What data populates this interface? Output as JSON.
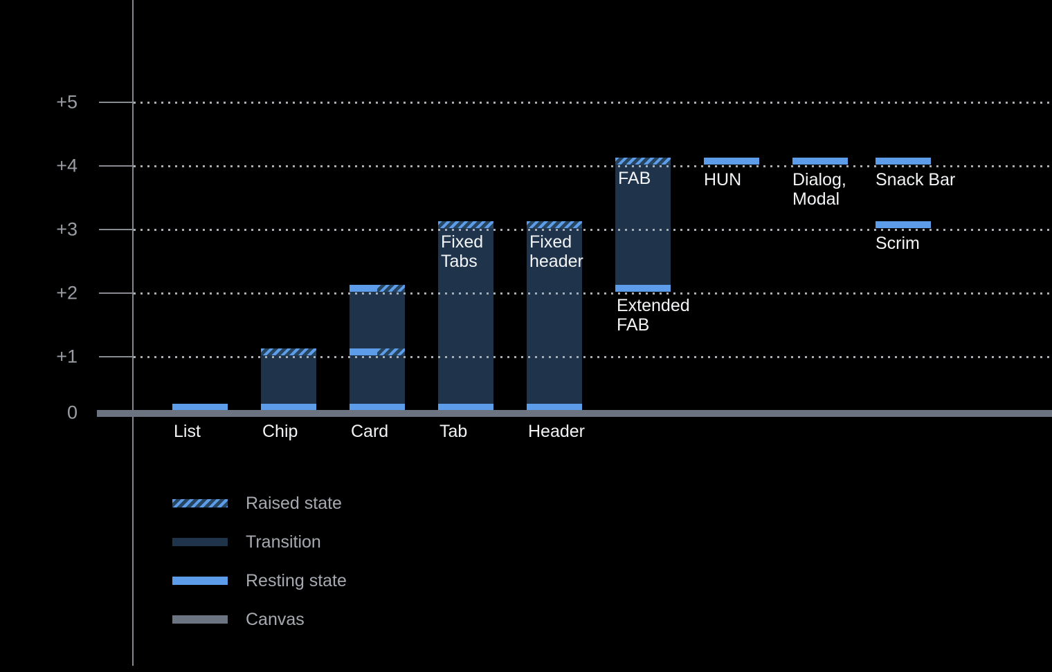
{
  "chart_data": {
    "type": "bar",
    "title": "",
    "xlabel": "",
    "ylabel": "",
    "ylim": [
      0,
      5
    ],
    "grid": "dotted horizontal gridlines at +1..+5",
    "legend_position": "bottom-left",
    "y_ticks": [
      {
        "label": "+5",
        "value": 5
      },
      {
        "label": "+4",
        "value": 4
      },
      {
        "label": "+3",
        "value": 3
      },
      {
        "label": "+2",
        "value": 2
      },
      {
        "label": "+1",
        "value": 1
      },
      {
        "label": "0",
        "value": 0
      }
    ],
    "gridline_values": [
      1,
      2,
      3,
      4,
      5
    ],
    "columns": [
      {
        "name": "list",
        "axis_label": "List",
        "segments": [
          {
            "kind": "resting",
            "at": 0
          }
        ]
      },
      {
        "name": "chip",
        "axis_label": "Chip",
        "segments": [
          {
            "kind": "transition",
            "from": 0,
            "to": 1
          },
          {
            "kind": "raised",
            "at": 1
          },
          {
            "kind": "resting",
            "at": 0
          }
        ]
      },
      {
        "name": "card",
        "axis_label": "Card",
        "segments": [
          {
            "kind": "transition",
            "from": 0,
            "to": 2
          },
          {
            "kind": "raised-resting",
            "at": 2
          },
          {
            "kind": "raised-resting",
            "at": 1
          },
          {
            "kind": "resting",
            "at": 0
          }
        ]
      },
      {
        "name": "tab",
        "axis_label": "Tab",
        "inner_label": [
          "Fixed",
          "Tabs"
        ],
        "segments": [
          {
            "kind": "transition",
            "from": 0,
            "to": 3
          },
          {
            "kind": "raised",
            "at": 3
          },
          {
            "kind": "resting",
            "at": 0
          }
        ]
      },
      {
        "name": "header",
        "axis_label": "Header",
        "inner_label": [
          "Fixed",
          "header"
        ],
        "segments": [
          {
            "kind": "transition",
            "from": 0,
            "to": 3
          },
          {
            "kind": "raised",
            "at": 3
          },
          {
            "kind": "resting",
            "at": 0
          }
        ]
      },
      {
        "name": "fab",
        "inner_label": [
          "FAB"
        ],
        "below_label": [
          "Extended",
          "FAB"
        ],
        "segments": [
          {
            "kind": "transition",
            "from": 2,
            "to": 4
          },
          {
            "kind": "raised",
            "at": 4
          },
          {
            "kind": "resting-float",
            "at": 2
          }
        ]
      },
      {
        "name": "hun",
        "segments": [
          {
            "kind": "resting-float",
            "at": 4,
            "label": [
              "HUN"
            ]
          }
        ]
      },
      {
        "name": "dialog-modal",
        "segments": [
          {
            "kind": "resting-float",
            "at": 4,
            "label": [
              "Dialog,",
              "Modal"
            ]
          }
        ]
      },
      {
        "name": "snack-bar-scrim",
        "segments": [
          {
            "kind": "resting-float",
            "at": 4,
            "label": [
              "Snack Bar"
            ]
          },
          {
            "kind": "resting-float",
            "at": 3,
            "label": [
              "Scrim"
            ]
          }
        ]
      }
    ],
    "legend": [
      {
        "swatch": "raised",
        "label": "Raised state"
      },
      {
        "swatch": "transition",
        "label": "Transition"
      },
      {
        "swatch": "resting",
        "label": "Resting state"
      },
      {
        "swatch": "canvas",
        "label": "Canvas"
      }
    ],
    "colors": {
      "background": "#000000",
      "resting": "#5d9ce8",
      "transition": "#1f344b",
      "raised_bg": "#27455f",
      "raised_stripe": "#5d9ce8",
      "canvas": "#6b7480",
      "axis": "#84888f",
      "tick": "#888c92",
      "gridline": "#a9aeb4",
      "tick_label": "#9a9ea4",
      "legend_text": "#a6aab0",
      "bar_label": "#f2f3f5"
    }
  }
}
